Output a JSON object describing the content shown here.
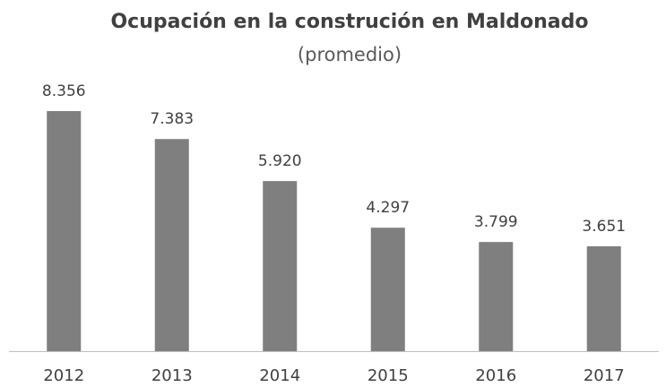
{
  "chart_data": {
    "type": "bar",
    "title": "Ocupación en la construción en Maldonado",
    "subtitle": "(promedio)",
    "categories": [
      "2012",
      "2013",
      "2014",
      "2015",
      "2016",
      "2017"
    ],
    "values": [
      8356,
      7383,
      5920,
      4297,
      3799,
      3651
    ],
    "value_labels": [
      "8.356",
      "7.383",
      "5.920",
      "4.297",
      "3.799",
      "3.651"
    ],
    "color": "#7f7f7f"
  }
}
